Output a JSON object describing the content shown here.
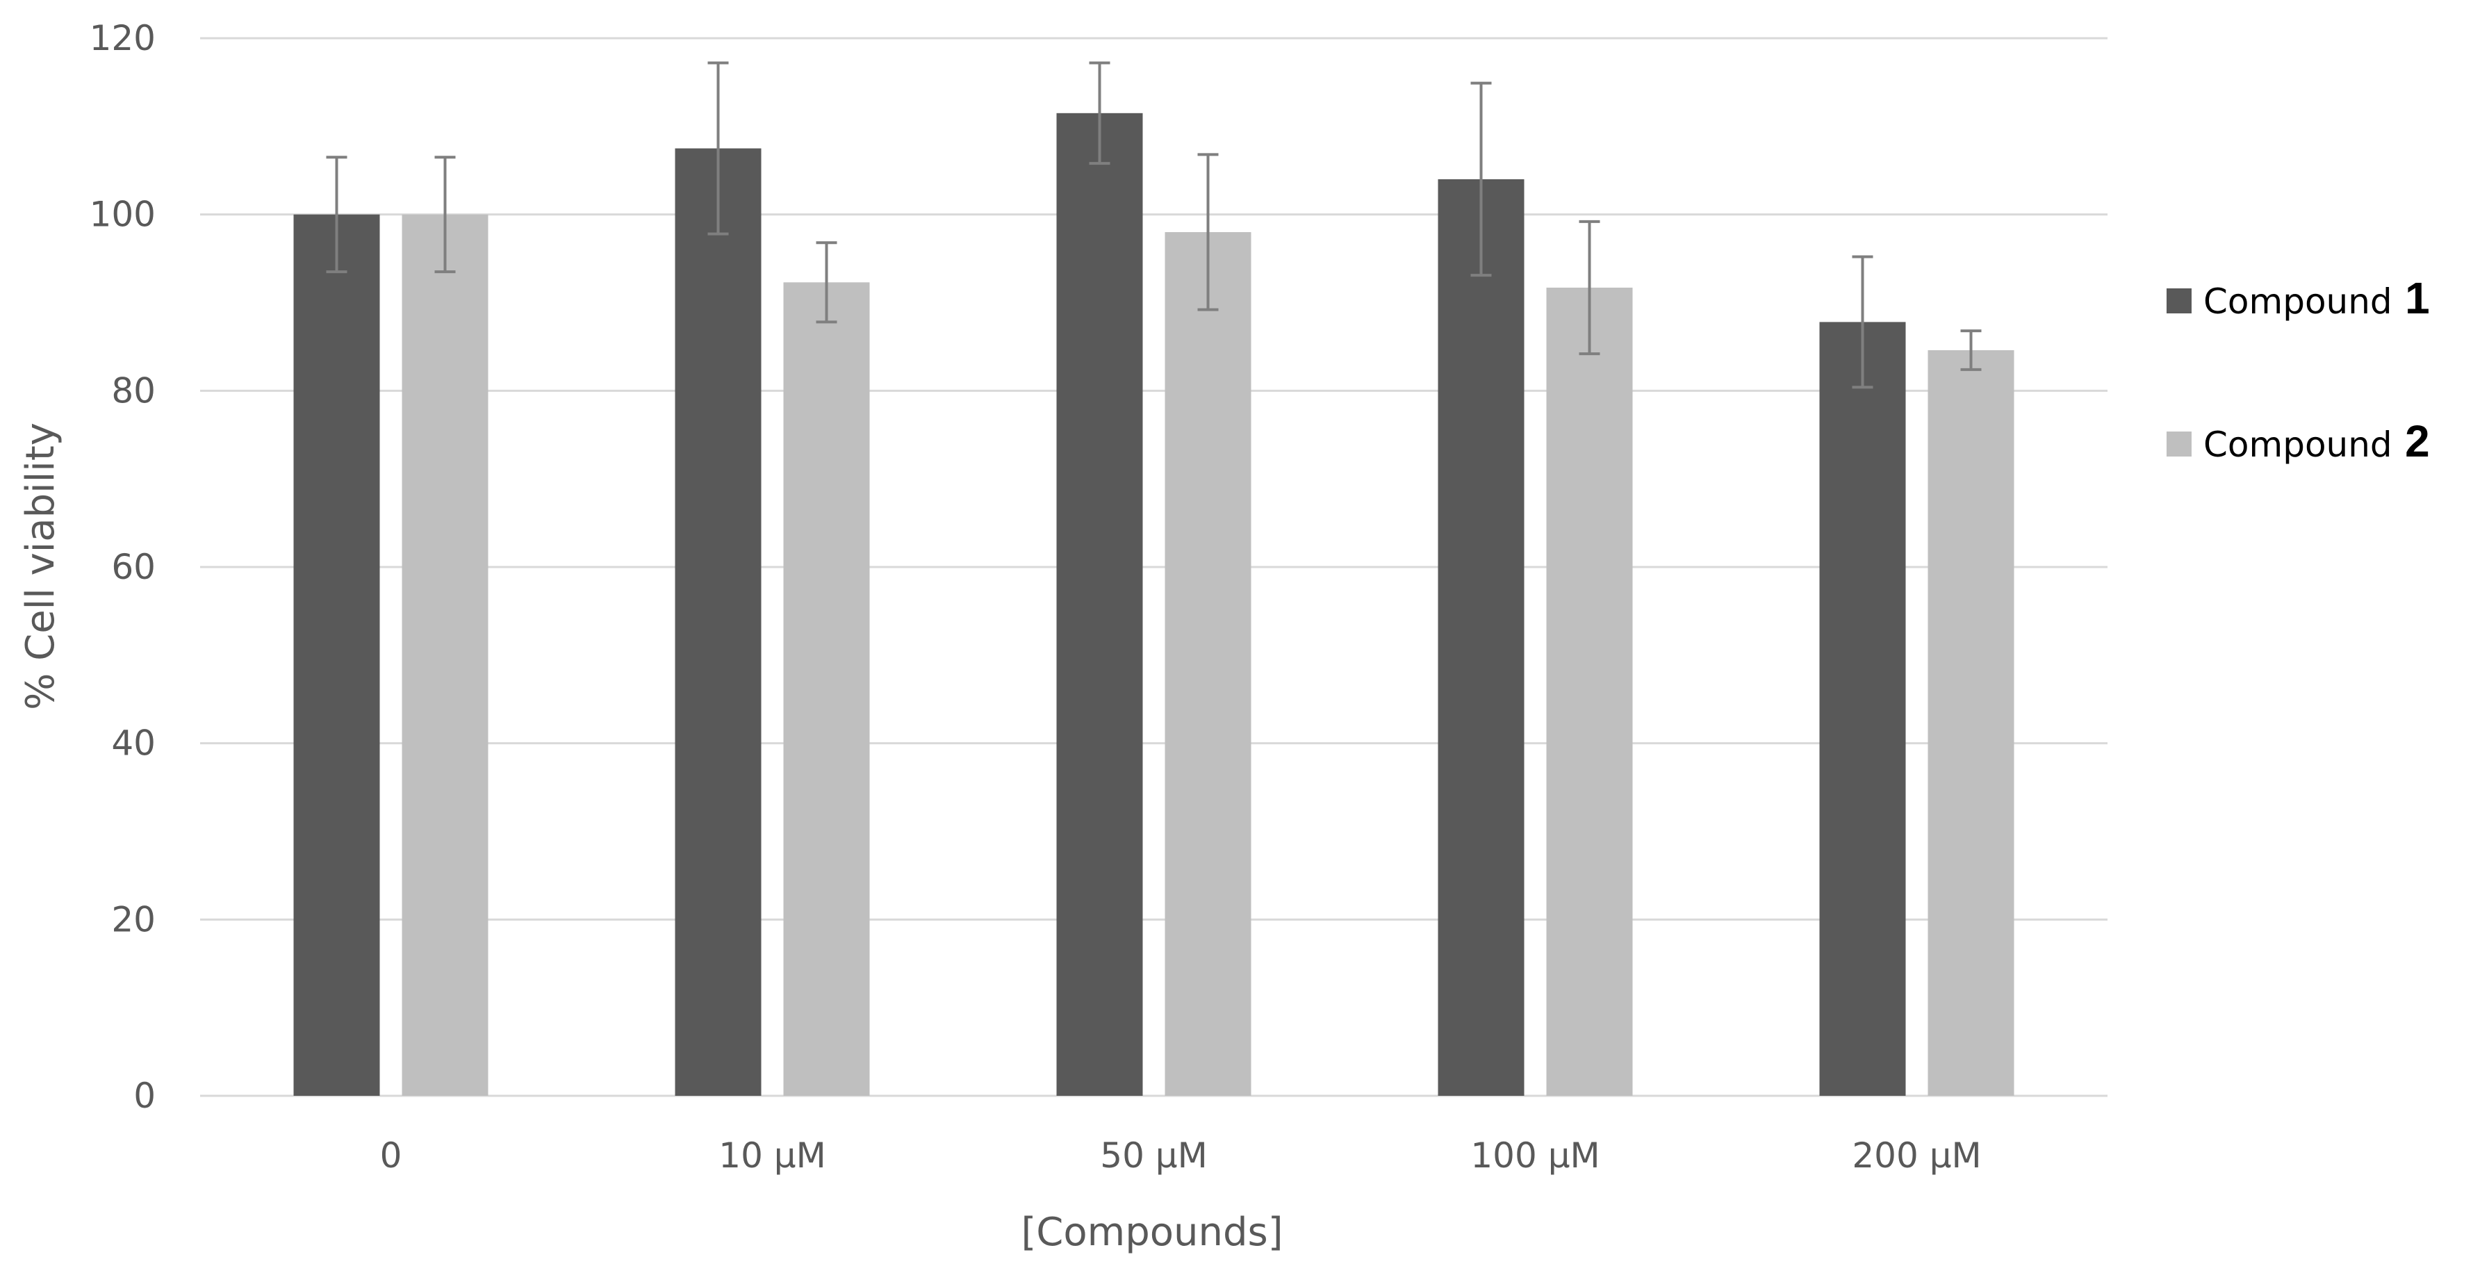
{
  "chart_data": {
    "type": "bar",
    "title": "",
    "xlabel": "[Compounds]",
    "ylabel": "% Cell viability",
    "ylim": [
      0,
      120
    ],
    "yticks": [
      0,
      20,
      40,
      60,
      80,
      100,
      120
    ],
    "grid": true,
    "legend_position": "right",
    "categories": [
      "0",
      "10 μM",
      "50 μM",
      "100 μM",
      "200 μM"
    ],
    "series": [
      {
        "name_prefix": "Compound",
        "name_number": "1",
        "color": "#595959",
        "values": [
          100,
          107.5,
          111.5,
          104,
          87.8
        ],
        "errors": [
          6.5,
          9.7,
          5.7,
          10.9,
          7.4
        ]
      },
      {
        "name_prefix": "Compound",
        "name_number": "2",
        "color": "#bfbfbf",
        "values": [
          100,
          92.3,
          98,
          91.7,
          84.6
        ],
        "errors": [
          6.5,
          4.5,
          8.8,
          7.5,
          2.2
        ]
      }
    ],
    "error_bar_color": "#7f7f7f",
    "gridline_color": "#d9d9d9",
    "axis_line_color": "#d9d9d9"
  }
}
